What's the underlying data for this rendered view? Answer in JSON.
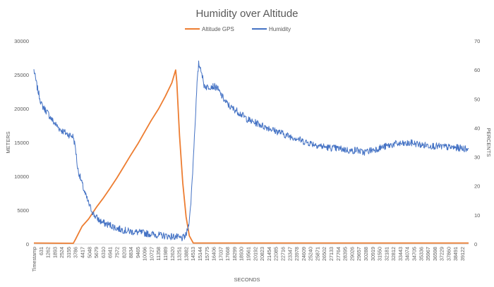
{
  "chart_data": {
    "type": "line",
    "title": "Humidity over Altitude",
    "xlabel": "SECONDS",
    "ylabel_left": "METERS",
    "ylabel_right": "PERCENTS",
    "ylim_left": [
      0,
      30000
    ],
    "ylim_right": [
      0,
      70
    ],
    "yticks_left": [
      "0",
      "5000",
      "10000",
      "15000",
      "20000",
      "25000",
      "30000"
    ],
    "yticks_right": [
      "0",
      "10",
      "20",
      "30",
      "40",
      "50",
      "60",
      "70"
    ],
    "x_first_label": "Timestamp",
    "x_categories": [
      "631",
      "1262",
      "1893",
      "2524",
      "3155",
      "3786",
      "4417",
      "5048",
      "5679",
      "6310",
      "6941",
      "7572",
      "8203",
      "8834",
      "9465",
      "10096",
      "10727",
      "11358",
      "11989",
      "12620",
      "13251",
      "13882",
      "14513",
      "15144",
      "15775",
      "16406",
      "17037",
      "17668",
      "18299",
      "18930",
      "19561",
      "20192",
      "20823",
      "21454",
      "22085",
      "22716",
      "23347",
      "23978",
      "24609",
      "25240",
      "25871",
      "26502",
      "27133",
      "27764",
      "28395",
      "29026",
      "29657",
      "30288",
      "30919",
      "31550",
      "32181",
      "32812",
      "33443",
      "34074",
      "34705",
      "35336",
      "35967",
      "36598",
      "37229",
      "37860",
      "38491",
      "39122"
    ],
    "x_max": 39700,
    "grid": false,
    "legend_position": "top",
    "series": [
      {
        "name": "Altitude GPS",
        "axis": "left",
        "color": "#ED7D31",
        "points": [
          [
            0,
            150
          ],
          [
            3600,
            100
          ],
          [
            3800,
            700
          ],
          [
            4400,
            2600
          ],
          [
            5000,
            3700
          ],
          [
            5700,
            5400
          ],
          [
            6300,
            6700
          ],
          [
            6900,
            8100
          ],
          [
            7600,
            9800
          ],
          [
            8200,
            11400
          ],
          [
            8800,
            13000
          ],
          [
            9500,
            14800
          ],
          [
            10100,
            16500
          ],
          [
            10700,
            18200
          ],
          [
            11400,
            20000
          ],
          [
            12000,
            21800
          ],
          [
            12600,
            23800
          ],
          [
            12950,
            25700
          ],
          [
            13050,
            24000
          ],
          [
            13300,
            16000
          ],
          [
            13600,
            9000
          ],
          [
            13900,
            4000
          ],
          [
            14200,
            1200
          ],
          [
            14550,
            150
          ],
          [
            15000,
            150
          ],
          [
            20000,
            150
          ],
          [
            25000,
            150
          ],
          [
            30000,
            150
          ],
          [
            35000,
            150
          ],
          [
            39700,
            150
          ]
        ]
      },
      {
        "name": "Humidity",
        "axis": "right",
        "color": "#4472C4",
        "points": [
          [
            0,
            60
          ],
          [
            300,
            54
          ],
          [
            700,
            48
          ],
          [
            1200,
            45.5
          ],
          [
            1800,
            42
          ],
          [
            2400,
            39.5
          ],
          [
            3000,
            38
          ],
          [
            3600,
            37
          ],
          [
            3800,
            33
          ],
          [
            4000,
            26
          ],
          [
            4300,
            22
          ],
          [
            4700,
            17
          ],
          [
            5100,
            13
          ],
          [
            5500,
            10
          ],
          [
            6000,
            8
          ],
          [
            6500,
            7
          ],
          [
            7000,
            6.5
          ],
          [
            7500,
            5.5
          ],
          [
            8000,
            5
          ],
          [
            8500,
            4.5
          ],
          [
            9000,
            4.2
          ],
          [
            9500,
            4
          ],
          [
            10000,
            3.8
          ],
          [
            10500,
            3.5
          ],
          [
            11000,
            3.3
          ],
          [
            11500,
            3
          ],
          [
            12000,
            2.8
          ],
          [
            12500,
            2.6
          ],
          [
            13000,
            2.5
          ],
          [
            13300,
            2
          ],
          [
            13600,
            2
          ],
          [
            13900,
            3
          ],
          [
            14100,
            6
          ],
          [
            14300,
            12
          ],
          [
            14500,
            25
          ],
          [
            14700,
            40
          ],
          [
            14900,
            55
          ],
          [
            15050,
            62
          ],
          [
            15300,
            60
          ],
          [
            15500,
            55
          ],
          [
            15800,
            54
          ],
          [
            16200,
            54.5
          ],
          [
            16700,
            54
          ],
          [
            17000,
            52
          ],
          [
            17500,
            49
          ],
          [
            18000,
            47
          ],
          [
            18500,
            46
          ],
          [
            19000,
            44.5
          ],
          [
            19500,
            43
          ],
          [
            20000,
            42
          ],
          [
            20500,
            41.5
          ],
          [
            21000,
            40.5
          ],
          [
            21500,
            40
          ],
          [
            22000,
            39
          ],
          [
            22500,
            38.5
          ],
          [
            23000,
            37.5
          ],
          [
            23500,
            37
          ],
          [
            24000,
            36.5
          ],
          [
            24500,
            35.5
          ],
          [
            25000,
            35
          ],
          [
            25500,
            34.5
          ],
          [
            26000,
            34
          ],
          [
            26500,
            33.5
          ],
          [
            27000,
            33.2
          ],
          [
            27500,
            33
          ],
          [
            28000,
            32.8
          ],
          [
            28500,
            32.5
          ],
          [
            29000,
            32
          ],
          [
            29500,
            32.5
          ],
          [
            30000,
            31.5
          ],
          [
            30500,
            32
          ],
          [
            31000,
            32.5
          ],
          [
            31500,
            33
          ],
          [
            32000,
            33.5
          ],
          [
            32500,
            34
          ],
          [
            33000,
            34.5
          ],
          [
            33500,
            34.5
          ],
          [
            34000,
            34.5
          ],
          [
            34500,
            34.8
          ],
          [
            35000,
            34.5
          ],
          [
            35500,
            34
          ],
          [
            36000,
            34
          ],
          [
            36500,
            33.8
          ],
          [
            37000,
            33.6
          ],
          [
            37500,
            33.5
          ],
          [
            38000,
            33.3
          ],
          [
            38500,
            33.2
          ],
          [
            39000,
            33
          ],
          [
            39700,
            32.8
          ]
        ]
      }
    ]
  }
}
